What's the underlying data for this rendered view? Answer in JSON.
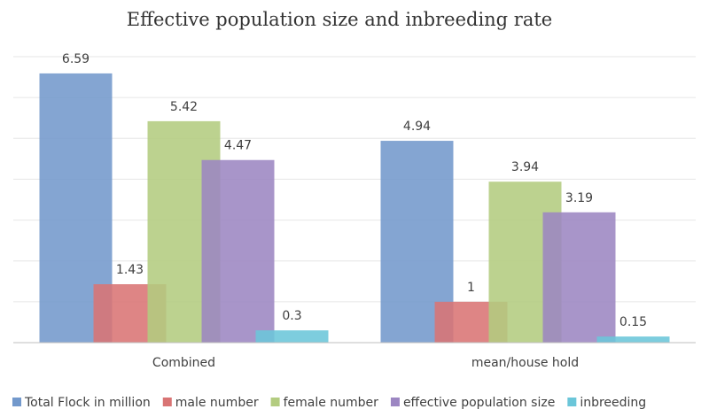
{
  "chart_data": {
    "type": "bar",
    "title": "Effective population size and inbreeding rate",
    "categories": [
      "Combined",
      "mean/house hold"
    ],
    "series": [
      {
        "name": "Total Flock in million",
        "values": [
          6.59,
          4.94
        ],
        "labels": [
          "6.59",
          "4.94"
        ],
        "color": "#7399cc"
      },
      {
        "name": "male number",
        "values": [
          1.43,
          1.0
        ],
        "labels": [
          "1.43",
          "1"
        ],
        "color": "#d97474"
      },
      {
        "name": "female number",
        "values": [
          5.42,
          3.94
        ],
        "labels": [
          "5.42",
          "3.94"
        ],
        "color": "#b3cc80"
      },
      {
        "name": "effective population size",
        "values": [
          4.47,
          3.19
        ],
        "labels": [
          "4.47",
          "3.19"
        ],
        "color": "#9c86c2"
      },
      {
        "name": "inbreeding",
        "values": [
          0.3,
          0.15
        ],
        "labels": [
          "0.3",
          "0.15"
        ],
        "color": "#6bc6d9"
      }
    ],
    "ylim": [
      0,
      7
    ],
    "grid": true,
    "legend_position": "bottom"
  }
}
